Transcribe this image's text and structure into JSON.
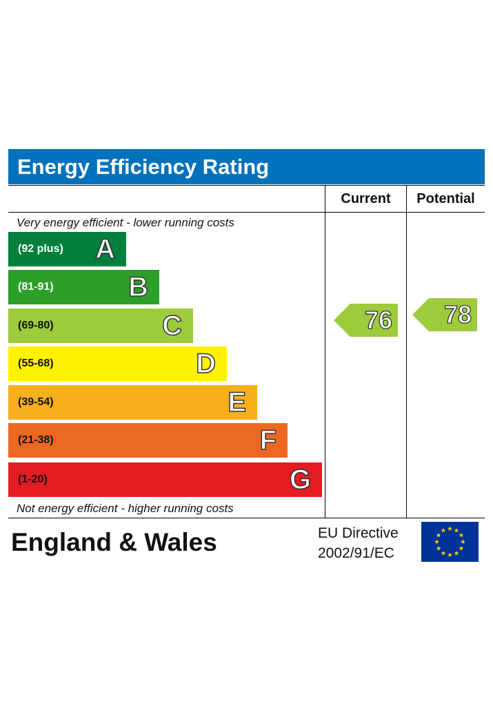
{
  "header": {
    "title": "Energy Efficiency Rating"
  },
  "columns": {
    "current": "Current",
    "potential": "Potential"
  },
  "notes": {
    "top": "Very energy efficient - lower running costs",
    "bottom": "Not energy efficient - higher running costs"
  },
  "chart_data": {
    "type": "bar",
    "title": "Energy Efficiency Rating",
    "categories": [
      "A",
      "B",
      "C",
      "D",
      "E",
      "F",
      "G"
    ],
    "ranges": [
      "(92 plus)",
      "(81-91)",
      "(69-80)",
      "(55-68)",
      "(39-54)",
      "(21-38)",
      "(1-20)"
    ],
    "colors": [
      "#007f3d",
      "#2c9f29",
      "#9dcb3c",
      "#fff200",
      "#f7af1d",
      "#ed6823",
      "#e31d23"
    ],
    "range_text_colors": [
      "#ffffff",
      "#ffffff",
      "#111111",
      "#111111",
      "#111111",
      "#111111",
      "#111111"
    ],
    "current": {
      "value": 76,
      "band": "C",
      "color": "#9dcb3c"
    },
    "potential": {
      "value": 78,
      "band": "C",
      "color": "#9dcb3c"
    }
  },
  "footer": {
    "country": "England & Wales",
    "directive_line1": "EU Directive",
    "directive_line2": "2002/91/EC"
  },
  "flag": {
    "icon": "eu-flag-icon",
    "background": "#003399",
    "stars": "#ffcc00"
  }
}
